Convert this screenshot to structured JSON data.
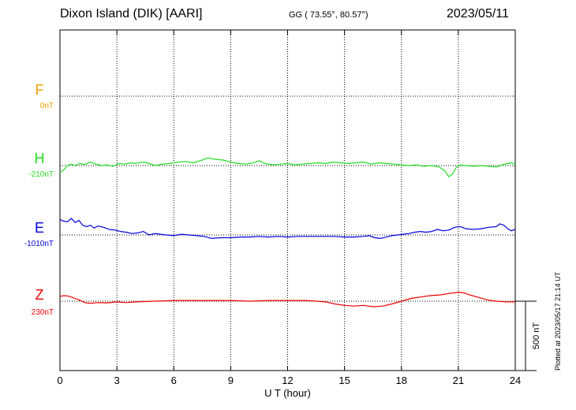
{
  "header": {
    "station": "Dixon Island (DIK)  [AARI]",
    "coords": "GG ( 73.55°,  80.57°)",
    "date": "2023/05/11"
  },
  "footer": {
    "plotted": "Plotted at 2023/05/17 21:14 UT"
  },
  "chart_data": {
    "type": "line",
    "xlabel": "U T (hour)",
    "xlim": [
      0,
      24
    ],
    "xticks": [
      0,
      3,
      6,
      9,
      12,
      15,
      18,
      21,
      24
    ],
    "scale_bar": {
      "label": "500 nT",
      "value_nT": 500
    },
    "series": [
      {
        "name": "F",
        "baseline_label": "0nT",
        "color": "#f0a000",
        "values": []
      },
      {
        "name": "H",
        "baseline_label": "-210nT",
        "color": "#22dd22",
        "x": [
          0,
          0.2,
          0.4,
          0.6,
          0.8,
          1.0,
          1.3,
          1.6,
          1.9,
          2.2,
          2.5,
          2.8,
          3.1,
          3.4,
          3.7,
          4.0,
          4.3,
          4.6,
          5.0,
          5.4,
          5.8,
          6.2,
          6.6,
          7.0,
          7.4,
          7.8,
          8.2,
          8.6,
          9.0,
          9.4,
          9.8,
          10.2,
          10.5,
          10.8,
          11.2,
          11.6,
          12.0,
          12.4,
          12.8,
          13.2,
          13.6,
          14.0,
          14.4,
          14.8,
          15.2,
          15.6,
          16.0,
          16.4,
          16.8,
          17.2,
          17.6,
          18.0,
          18.4,
          18.8,
          19.2,
          19.6,
          20.0,
          20.3,
          20.5,
          20.7,
          20.9,
          21.1,
          21.4,
          21.8,
          22.2,
          22.6,
          23.0,
          23.3,
          23.6,
          23.8,
          24.0
        ],
        "values": [
          -50,
          -30,
          0,
          10,
          0,
          15,
          8,
          25,
          10,
          0,
          5,
          -5,
          15,
          10,
          20,
          15,
          25,
          20,
          0,
          10,
          15,
          25,
          30,
          20,
          35,
          55,
          45,
          40,
          25,
          15,
          10,
          20,
          35,
          15,
          5,
          10,
          15,
          5,
          10,
          15,
          20,
          15,
          25,
          20,
          15,
          20,
          25,
          10,
          20,
          15,
          10,
          5,
          0,
          5,
          -5,
          0,
          -10,
          -40,
          -80,
          -60,
          -10,
          5,
          0,
          -5,
          0,
          -5,
          -10,
          5,
          15,
          20,
          10
        ]
      },
      {
        "name": "E",
        "baseline_label": "-1010nT",
        "color": "#0000dd",
        "x": [
          0,
          0.2,
          0.4,
          0.6,
          0.8,
          1.0,
          1.2,
          1.4,
          1.6,
          1.8,
          2.0,
          2.3,
          2.6,
          2.9,
          3.2,
          3.5,
          3.8,
          4.1,
          4.4,
          4.7,
          5.0,
          5.3,
          5.6,
          6.0,
          6.4,
          6.8,
          7.2,
          7.6,
          8.0,
          8.5,
          9.0,
          9.5,
          10.0,
          10.5,
          11.0,
          11.5,
          12.0,
          12.5,
          13.0,
          13.5,
          14.0,
          14.5,
          15.0,
          15.5,
          16.0,
          16.3,
          16.6,
          16.9,
          17.2,
          17.5,
          17.8,
          18.1,
          18.4,
          18.7,
          19.0,
          19.3,
          19.6,
          19.9,
          20.2,
          20.5,
          20.8,
          21.1,
          21.4,
          21.8,
          22.2,
          22.6,
          23.0,
          23.2,
          23.4,
          23.6,
          23.8,
          24.0
        ],
        "values": [
          110,
          100,
          95,
          120,
          90,
          105,
          70,
          60,
          70,
          50,
          65,
          55,
          40,
          35,
          25,
          20,
          10,
          15,
          25,
          0,
          10,
          5,
          0,
          -5,
          5,
          0,
          -5,
          -10,
          -25,
          -20,
          -20,
          -15,
          -15,
          -10,
          -15,
          -10,
          -15,
          -10,
          -10,
          -10,
          -10,
          -10,
          -15,
          -15,
          -10,
          -5,
          -20,
          -25,
          -15,
          -5,
          0,
          5,
          10,
          20,
          25,
          20,
          25,
          40,
          30,
          35,
          55,
          60,
          45,
          40,
          45,
          55,
          60,
          80,
          70,
          45,
          30,
          40
        ]
      },
      {
        "name": "Z",
        "baseline_label": "230nT",
        "color": "#ee0000",
        "x": [
          0,
          0.2,
          0.4,
          0.6,
          0.8,
          1.0,
          1.3,
          1.6,
          2.0,
          2.5,
          3.0,
          3.5,
          4.0,
          5.0,
          6.0,
          7.0,
          8.0,
          9.0,
          10.0,
          11.0,
          12.0,
          13.0,
          13.5,
          14.0,
          14.5,
          15.0,
          15.5,
          16.0,
          16.5,
          17.0,
          17.5,
          18.0,
          18.5,
          19.0,
          19.5,
          20.0,
          20.5,
          21.0,
          21.3,
          21.6,
          22.0,
          22.5,
          23.0,
          23.5,
          24.0
        ],
        "values": [
          35,
          40,
          38,
          30,
          20,
          10,
          -10,
          -15,
          -10,
          -12,
          -5,
          -10,
          -5,
          0,
          5,
          5,
          5,
          5,
          0,
          5,
          5,
          5,
          0,
          -5,
          -20,
          -30,
          -35,
          -30,
          -40,
          -35,
          -20,
          0,
          20,
          30,
          40,
          45,
          55,
          65,
          60,
          45,
          30,
          10,
          0,
          -5,
          -5
        ]
      }
    ]
  }
}
